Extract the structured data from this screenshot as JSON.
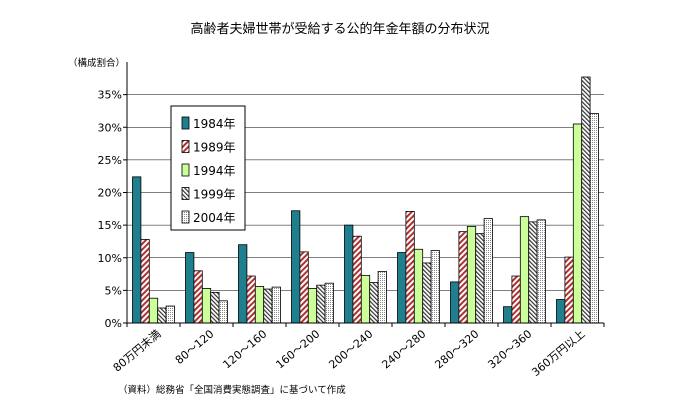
{
  "chart_data": {
    "type": "bar",
    "title": "高齢者夫婦世帯が受給する公的年金年額の分布状況",
    "ylabel": "（構成割合）",
    "source_note": "（資料）総務省「全国消費実態調査」に基づいて作成",
    "ylim": [
      0,
      40
    ],
    "yticks": [
      "0%",
      "5%",
      "10%",
      "15%",
      "20%",
      "25%",
      "30%",
      "35%"
    ],
    "ytick_values": [
      0,
      5,
      10,
      15,
      20,
      25,
      30,
      35
    ],
    "categories": [
      "80万円未満",
      "80～120",
      "120～160",
      "160～200",
      "200～240",
      "240～280",
      "280～320",
      "320～360",
      "360万円以上"
    ],
    "legend_position": "left-inside",
    "series": [
      {
        "name": "1984年",
        "pattern": "solid-teal",
        "color": "#1f7f8f",
        "values": [
          22.4,
          10.8,
          12.0,
          17.2,
          15.0,
          10.8,
          6.3,
          2.5,
          3.6
        ]
      },
      {
        "name": "1989年",
        "pattern": "red-diagonal",
        "color": "#b03030",
        "values": [
          12.8,
          8.0,
          7.2,
          10.9,
          13.3,
          17.1,
          14.0,
          7.2,
          10.1
        ]
      },
      {
        "name": "1994年",
        "pattern": "light-green",
        "color": "#ccff99",
        "values": [
          3.8,
          5.3,
          5.6,
          5.3,
          7.3,
          11.3,
          14.8,
          16.3,
          30.5
        ]
      },
      {
        "name": "1999年",
        "pattern": "black-diagonal",
        "color": "#333333",
        "values": [
          2.3,
          4.7,
          5.2,
          5.8,
          6.2,
          9.2,
          13.7,
          15.5,
          37.7
        ]
      },
      {
        "name": "2004年",
        "pattern": "dots",
        "color": "#666666",
        "values": [
          2.6,
          3.4,
          5.5,
          6.1,
          7.9,
          11.1,
          16.0,
          15.8,
          32.1
        ]
      }
    ]
  }
}
